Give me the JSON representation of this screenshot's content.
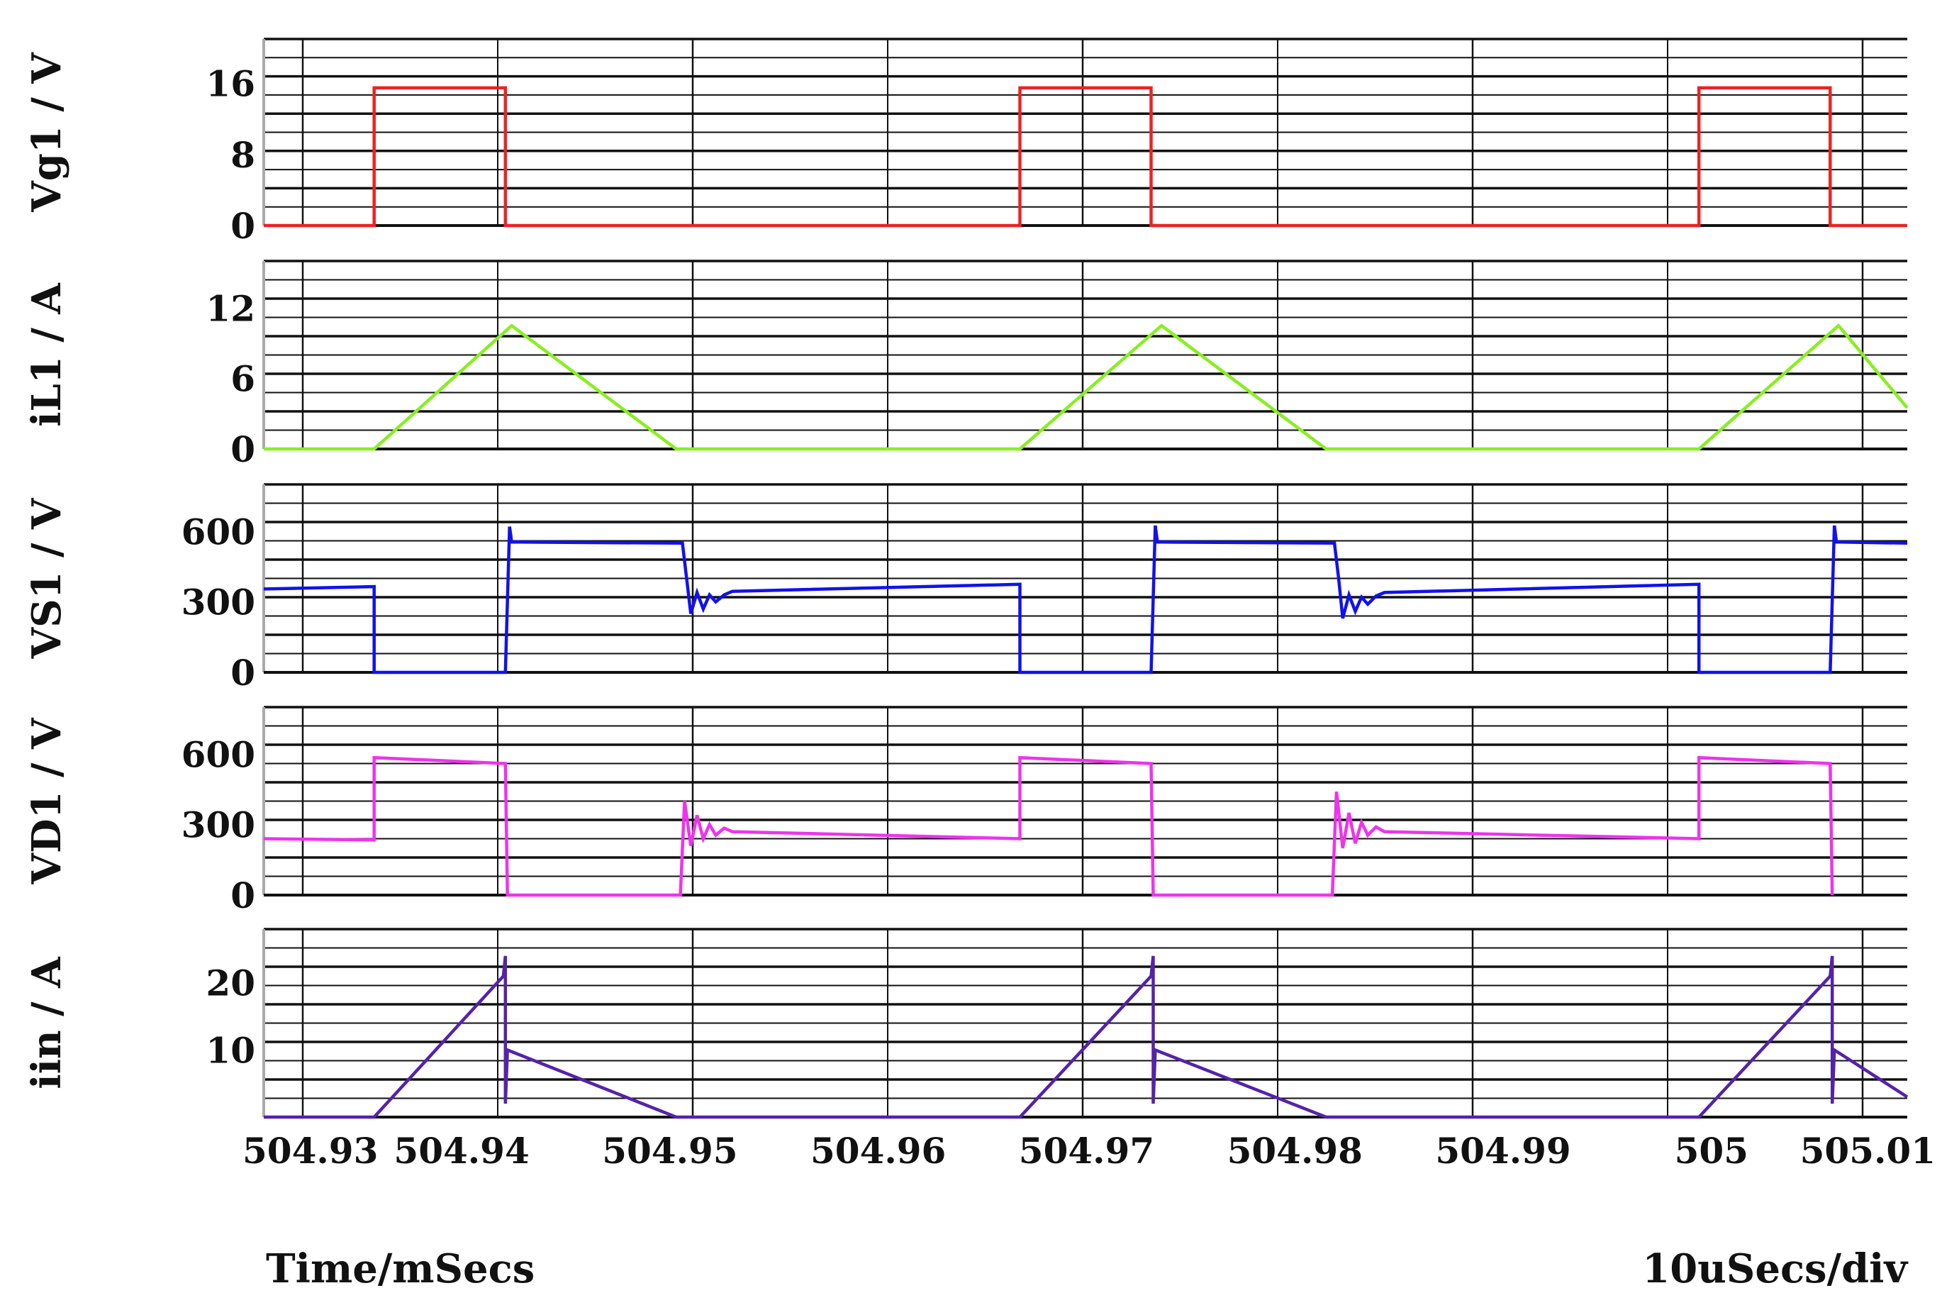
{
  "chart_data": [
    {
      "type": "line",
      "ylabel": "Vg1 / V",
      "yticks": [
        0,
        8,
        16
      ],
      "ylim": [
        0,
        21
      ],
      "color": "#ee2222",
      "grid": true,
      "series": [
        {
          "x": [
            504.9305,
            504.9358,
            504.9358,
            504.9421,
            504.9421,
            504.9668,
            504.9668,
            504.9731,
            504.9731,
            504.9994,
            504.9994,
            505.0057,
            505.0057,
            505.0094
          ],
          "y": [
            0,
            0,
            15.5,
            15.5,
            0,
            0,
            15.5,
            15.5,
            0,
            0,
            15.5,
            15.5,
            0,
            0
          ]
        }
      ]
    },
    {
      "type": "line",
      "ylabel": "iL1 / A",
      "yticks": [
        0,
        6,
        12
      ],
      "ylim": [
        0,
        16
      ],
      "color": "#88ee22",
      "grid": true,
      "series": [
        {
          "x": [
            504.9305,
            504.9358,
            504.9424,
            504.9503,
            504.9668,
            504.9736,
            504.9815,
            504.9994,
            505.0061,
            505.0094
          ],
          "y": [
            0,
            0,
            10.5,
            0,
            0,
            10.5,
            0,
            0,
            10.5,
            3.5
          ]
        }
      ]
    },
    {
      "type": "line",
      "ylabel": "VS1 / V",
      "yticks": [
        0,
        300,
        600
      ],
      "ylim": [
        0,
        800
      ],
      "color": "#1111ee",
      "grid": true,
      "series": [
        {
          "x": [
            504.9305,
            504.9358,
            504.9358,
            504.9421,
            504.9423,
            504.9424,
            504.9506,
            504.9508,
            504.951,
            504.9513,
            504.9516,
            504.9519,
            504.9522,
            504.9526,
            504.953,
            504.9668,
            504.9668,
            504.9731,
            504.9733,
            504.9734,
            504.9819,
            504.9821,
            504.9823,
            504.9826,
            504.9829,
            504.9832,
            504.9835,
            504.9839,
            504.9843,
            504.9994,
            504.9994,
            505.0057,
            505.0059,
            505.006,
            505.0094
          ],
          "y": [
            355,
            365,
            0,
            0,
            620,
            555,
            550,
            400,
            250,
            340,
            270,
            330,
            300,
            330,
            345,
            375,
            0,
            0,
            625,
            555,
            550,
            400,
            230,
            330,
            260,
            320,
            290,
            325,
            340,
            375,
            0,
            0,
            625,
            555,
            550
          ]
        }
      ]
    },
    {
      "type": "line",
      "ylabel": "VD1 / V",
      "yticks": [
        0,
        300,
        600
      ],
      "ylim": [
        0,
        800
      ],
      "color": "#ee33ee",
      "grid": true,
      "series": [
        {
          "x": [
            504.9305,
            504.9358,
            504.9358,
            504.9421,
            504.9422,
            504.9505,
            504.9507,
            504.951,
            504.9513,
            504.9516,
            504.9519,
            504.9522,
            504.9526,
            504.953,
            504.9668,
            504.9668,
            504.9731,
            504.9732,
            504.9818,
            504.982,
            504.9823,
            504.9826,
            504.9829,
            504.9832,
            504.9835,
            504.9839,
            504.9843,
            504.9994,
            504.9994,
            505.0057,
            505.0058
          ],
          "y": [
            240,
            235,
            585,
            560,
            0,
            0,
            400,
            210,
            340,
            240,
            300,
            255,
            285,
            270,
            240,
            585,
            560,
            0,
            0,
            440,
            200,
            350,
            220,
            310,
            255,
            290,
            270,
            240,
            585,
            560,
            0
          ]
        }
      ]
    },
    {
      "type": "line",
      "ylabel": "iin / A",
      "yticks": [
        10,
        20
      ],
      "ylim": [
        0,
        28
      ],
      "color": "#5522aa",
      "grid": true,
      "series": [
        {
          "x": [
            504.9305,
            504.9358,
            504.942,
            504.9421,
            504.9421,
            504.9422,
            504.9503,
            504.9668,
            504.9731,
            504.9732,
            504.9732,
            504.9733,
            504.9815,
            504.9994,
            505.0057,
            505.0058,
            505.0058,
            505.0059,
            505.0094
          ],
          "y": [
            0,
            0,
            21,
            24,
            2,
            10,
            0,
            0,
            21,
            24,
            2,
            10,
            0,
            0,
            21,
            24,
            2,
            10,
            3
          ]
        }
      ]
    }
  ],
  "x_axis": {
    "range": [
      504.9305,
      505.0094
    ],
    "tick_values": [
      504.93,
      504.94,
      504.95,
      504.96,
      504.97,
      504.98,
      504.99,
      505.0,
      505.01
    ],
    "tick_labels": [
      "504.93",
      "504.94",
      "504.95",
      "504.96",
      "504.97",
      "504.98",
      "504.99",
      "505",
      "505.01"
    ],
    "xlabel": "Time/mSecs",
    "scale_note": "10uSecs/div"
  }
}
